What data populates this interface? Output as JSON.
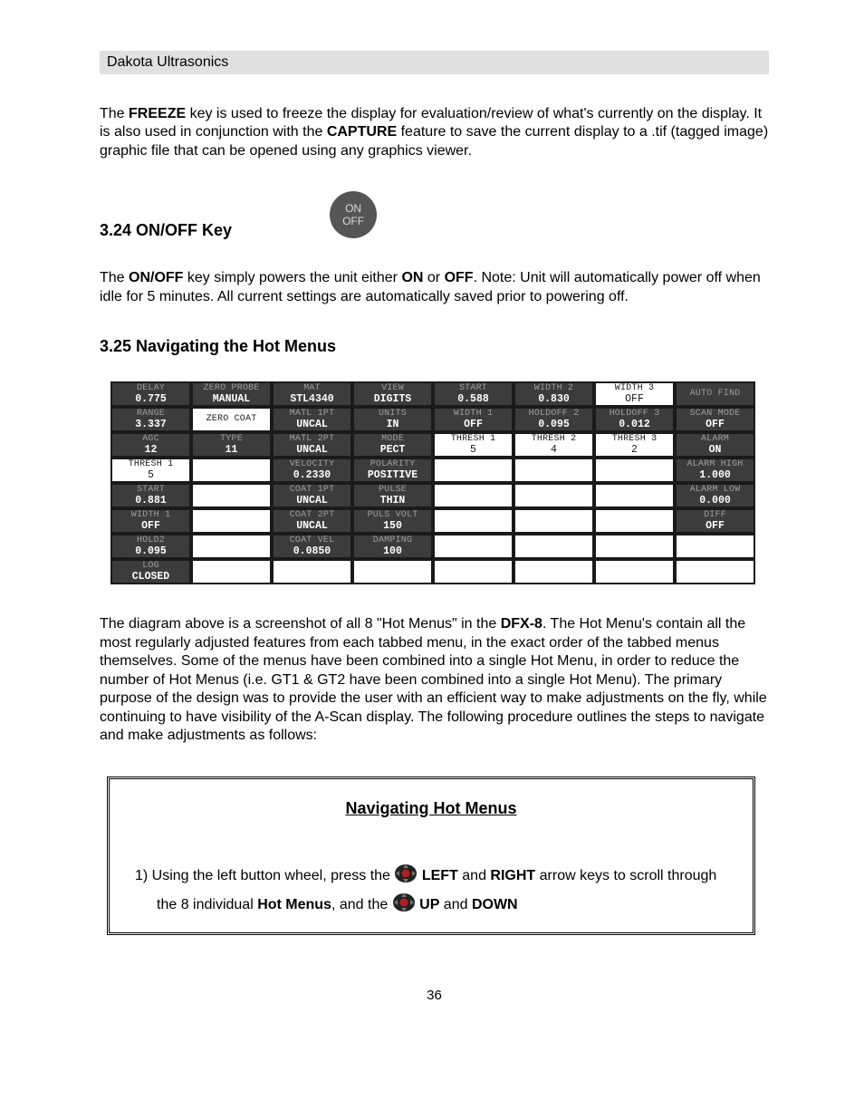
{
  "header": {
    "brand": "Dakota Ultrasonics"
  },
  "p1": {
    "t1": "The ",
    "b1": "FREEZE",
    "t2": " key is used to freeze the display for evaluation/review of what's currently on the display.  It is also used in conjunction with the ",
    "b2": "CAPTURE",
    "t3": " feature to save the current display to a .tif (tagged image) graphic file that can be opened using any graphics viewer."
  },
  "s324": {
    "title": "3.24 ON/OFF Key",
    "disc_top": "ON",
    "disc_bot": "OFF",
    "t1": "The ",
    "b1": "ON/OFF",
    "t2": " key simply powers the unit either ",
    "b2": "ON",
    "t3": " or ",
    "b3": "OFF",
    "t4": ".  Note:  Unit will automatically power off when idle for 5 minutes.  All current settings are automatically saved prior to powering off."
  },
  "s325": {
    "title": "3.25 Navigating the Hot Menus",
    "after": {
      "t1": "The diagram above is a screenshot of all 8 \"Hot Menus\" in the ",
      "b1": "DFX-8",
      "t2": ".  The Hot Menu's contain all the most regularly adjusted features from each tabbed menu, in the exact order of the tabbed menus themselves.  Some of the menus have been combined into a single Hot Menu, in order to reduce the number of Hot Menus (i.e. GT1 & GT2 have been combined into a single Hot Menu).  The primary purpose of the design was to provide the user with an efficient way to make adjustments on the fly, while continuing to have visibility of the A-Scan display.  The following procedure outlines the steps to navigate and make adjustments as follows:"
    }
  },
  "lcd": {
    "rows": 8,
    "grid": [
      [
        {
          "label": "DELAY",
          "value": "0.775",
          "mode": "dark",
          "label_faint": true
        },
        {
          "label": "ZERO PROBE",
          "value": "MANUAL",
          "mode": "dark",
          "label_faint": true
        },
        {
          "label": "MAT",
          "value": "STL4340",
          "mode": "dark",
          "label_faint": true
        },
        {
          "label": "VIEW",
          "value": "DIGITS",
          "mode": "dark",
          "label_faint": true
        },
        {
          "label": "START",
          "value": "0.588",
          "mode": "dark",
          "label_faint": true
        },
        {
          "label": "WIDTH 2",
          "value": "0.830",
          "mode": "dark",
          "label_faint": true
        },
        {
          "label": "WIDTH 3",
          "value": "OFF",
          "mode": "light",
          "faint_val": true
        },
        {
          "label": "AUTO FIND",
          "value": "",
          "mode": "dark",
          "label_faint": true
        }
      ],
      [
        {
          "label": "RANGE",
          "value": "3.337",
          "mode": "dark",
          "label_faint": true
        },
        {
          "label": "ZERO COAT",
          "value": "",
          "mode": "light",
          "faint_val": true
        },
        {
          "label": "MATL 1PT",
          "value": "UNCAL",
          "mode": "dark",
          "label_faint": true
        },
        {
          "label": "UNITS",
          "value": "IN",
          "mode": "dark",
          "label_faint": true
        },
        {
          "label": "WIDTH 1",
          "value": "OFF",
          "mode": "dark",
          "label_faint": true
        },
        {
          "label": "HOLDOFF 2",
          "value": "0.095",
          "mode": "dark",
          "label_faint": true
        },
        {
          "label": "HOLDOFF 3",
          "value": "0.012",
          "mode": "dark",
          "label_faint": true
        },
        {
          "label": "SCAN MODE",
          "value": "OFF",
          "mode": "dark",
          "label_faint": true
        }
      ],
      [
        {
          "label": "AGC",
          "value": "12",
          "mode": "dark",
          "label_faint": true
        },
        {
          "label": "TYPE",
          "value": "11",
          "mode": "dark",
          "label_faint": true
        },
        {
          "label": "MATL 2PT",
          "value": "UNCAL",
          "mode": "dark",
          "label_faint": true
        },
        {
          "label": "MODE",
          "value": "PECT",
          "mode": "dark",
          "label_faint": true
        },
        {
          "label": "THRESH 1",
          "value": "5",
          "mode": "light",
          "faint_val": true
        },
        {
          "label": "THRESH 2",
          "value": "4",
          "mode": "light",
          "faint_val": true
        },
        {
          "label": "THRESH 3",
          "value": "2",
          "mode": "light",
          "faint_val": true
        },
        {
          "label": "ALARM",
          "value": "ON",
          "mode": "dark",
          "label_faint": true
        }
      ],
      [
        {
          "label": "THRESH 1",
          "value": "5",
          "mode": "light",
          "faint_val": true
        },
        {
          "label": "",
          "value": "",
          "mode": "light"
        },
        {
          "label": "VELOCITY",
          "value": "0.2330",
          "mode": "dark",
          "label_faint": true
        },
        {
          "label": "POLARITY",
          "value": "POSITIVE",
          "mode": "dark",
          "label_faint": true
        },
        {
          "label": "",
          "value": "",
          "mode": "light"
        },
        {
          "label": "",
          "value": "",
          "mode": "light"
        },
        {
          "label": "",
          "value": "",
          "mode": "light"
        },
        {
          "label": "ALARM HIGH",
          "value": "1.000",
          "mode": "dark",
          "label_faint": true
        }
      ],
      [
        {
          "label": "START",
          "value": "0.881",
          "mode": "dark",
          "label_faint": true
        },
        {
          "label": "",
          "value": "",
          "mode": "light"
        },
        {
          "label": "COAT 1PT",
          "value": "UNCAL",
          "mode": "dark",
          "label_faint": true
        },
        {
          "label": "PULSE",
          "value": "THIN",
          "mode": "dark",
          "label_faint": true
        },
        {
          "label": "",
          "value": "",
          "mode": "light"
        },
        {
          "label": "",
          "value": "",
          "mode": "light"
        },
        {
          "label": "",
          "value": "",
          "mode": "light"
        },
        {
          "label": "ALARM LOW",
          "value": "0.000",
          "mode": "dark",
          "label_faint": true
        }
      ],
      [
        {
          "label": "WIDTH 1",
          "value": "OFF",
          "mode": "dark",
          "label_faint": true
        },
        {
          "label": "",
          "value": "",
          "mode": "light"
        },
        {
          "label": "COAT 2PT",
          "value": "UNCAL",
          "mode": "dark",
          "label_faint": true
        },
        {
          "label": "PULS VOLT",
          "value": "150",
          "mode": "dark",
          "label_faint": true
        },
        {
          "label": "",
          "value": "",
          "mode": "light"
        },
        {
          "label": "",
          "value": "",
          "mode": "light"
        },
        {
          "label": "",
          "value": "",
          "mode": "light"
        },
        {
          "label": "DIFF",
          "value": "OFF",
          "mode": "dark",
          "label_faint": true
        }
      ],
      [
        {
          "label": "HOLD2",
          "value": "0.095",
          "mode": "dark",
          "label_faint": true
        },
        {
          "label": "",
          "value": "",
          "mode": "light"
        },
        {
          "label": "COAT VEL",
          "value": "0.0850",
          "mode": "dark",
          "label_faint": true
        },
        {
          "label": "DAMPING",
          "value": "100",
          "mode": "dark",
          "label_faint": true
        },
        {
          "label": "",
          "value": "",
          "mode": "light"
        },
        {
          "label": "",
          "value": "",
          "mode": "light"
        },
        {
          "label": "",
          "value": "",
          "mode": "light"
        },
        {
          "label": "",
          "value": "",
          "mode": "light"
        }
      ],
      [
        {
          "label": "LOG",
          "value": "CLOSED",
          "mode": "dark",
          "label_faint": true
        },
        {
          "label": "",
          "value": "",
          "mode": "light"
        },
        {
          "label": "",
          "value": "",
          "mode": "light"
        },
        {
          "label": "",
          "value": "",
          "mode": "light"
        },
        {
          "label": "",
          "value": "",
          "mode": "light"
        },
        {
          "label": "",
          "value": "",
          "mode": "light"
        },
        {
          "label": "",
          "value": "",
          "mode": "light"
        },
        {
          "label": "",
          "value": "",
          "mode": "light"
        }
      ]
    ]
  },
  "proc": {
    "title": "Navigating Hot Menus",
    "step1": {
      "n": "1)  ",
      "t1": "Using the left button wheel, press the ",
      "b1": " LEFT",
      "t2": " and ",
      "b2": "RIGHT",
      "t3": " arrow keys to scroll through the 8 individual ",
      "b3": "Hot Menus",
      "t4": ", and the ",
      "b4": " UP",
      "t5": " and ",
      "b5": "DOWN"
    }
  },
  "footer": {
    "page": "36"
  }
}
